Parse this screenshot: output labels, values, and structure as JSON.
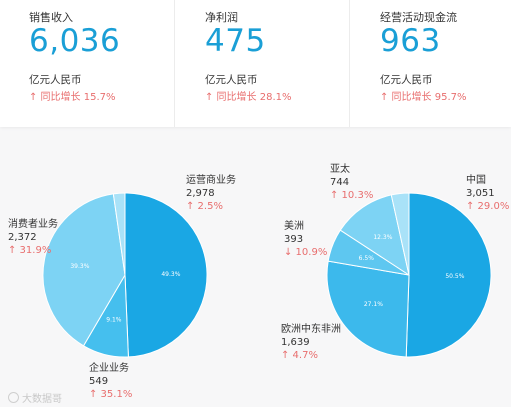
{
  "kpis": [
    {
      "label": "销售收入",
      "value": "6,036",
      "unit": "亿元人民币",
      "growth": "↑ 同比增长 15.7%"
    },
    {
      "label": "净利润",
      "value": "475",
      "unit": "亿元人民币",
      "growth": "↑ 同比增长 28.1%"
    },
    {
      "label": "经营活动现金流",
      "value": "963",
      "unit": "亿元人民币",
      "growth": "↑ 同比增长 95.7%"
    }
  ],
  "colors": {
    "accent": "#1a9fd6",
    "growth": "#e86e6e",
    "slice_dark": "#1aa7e4",
    "slice_mid": "#45bfee",
    "slice_light": "#7dd3f4",
    "slice_pale": "#a9e2f8"
  },
  "chart_data": [
    {
      "type": "pie",
      "title": "",
      "slices": [
        {
          "name": "运营商业务",
          "value": 2978,
          "growth": "↑ 2.5%",
          "pct_label": "49.3%",
          "color": "#1aa7e4"
        },
        {
          "name": "企业业务",
          "value": 549,
          "growth": "↑ 35.1%",
          "pct_label": "9.1%",
          "color": "#45bfee"
        },
        {
          "name": "消费者业务",
          "value": 2372,
          "growth": "↑ 31.9%",
          "pct_label": "39.3%",
          "color": "#7dd3f4"
        },
        {
          "name": "",
          "value": 137,
          "growth": "",
          "pct_label": "",
          "color": "#a9e2f8"
        }
      ]
    },
    {
      "type": "pie",
      "title": "",
      "slices": [
        {
          "name": "中国",
          "value": 3051,
          "growth": "↑ 29.0%",
          "pct_label": "50.5%",
          "color": "#1aa7e4"
        },
        {
          "name": "欧洲中东非洲",
          "value": 1639,
          "growth": "↑ 4.7%",
          "pct_label": "27.1%",
          "color": "#3cb9ec"
        },
        {
          "name": "美洲",
          "value": 393,
          "growth": "↓ 10.9%",
          "pct_label": "6.5%",
          "color": "#5ec7f0"
        },
        {
          "name": "亚太",
          "value": 744,
          "growth": "↑ 10.3%",
          "pct_label": "12.3%",
          "color": "#7dd3f4"
        },
        {
          "name": "",
          "value": 209,
          "growth": "",
          "pct_label": "",
          "color": "#a9e2f8"
        }
      ]
    }
  ],
  "annotations": {
    "left": {
      "yunying": {
        "name": "运营商业务",
        "num": "2,978",
        "chg": "↑ 2.5%"
      },
      "xiaofei": {
        "name": "消费者业务",
        "num": "2,372",
        "chg": "↑ 31.9%"
      },
      "qiye": {
        "name": "企业业务",
        "num": "549",
        "chg": "↑ 35.1%"
      }
    },
    "right": {
      "yatai": {
        "name": "亚太",
        "num": "744",
        "chg": "↑ 10.3%"
      },
      "zhongguo": {
        "name": "中国",
        "num": "3,051",
        "chg": "↑ 29.0%"
      },
      "meizhou": {
        "name": "美洲",
        "num": "393",
        "chg": "↓ 10.9%"
      },
      "ouzhou": {
        "name": "欧洲中东非洲",
        "num": "1,639",
        "chg": "↑ 4.7%"
      }
    }
  },
  "watermark": {
    "text": "大数据哥",
    "icon": "logo-circle-icon"
  }
}
